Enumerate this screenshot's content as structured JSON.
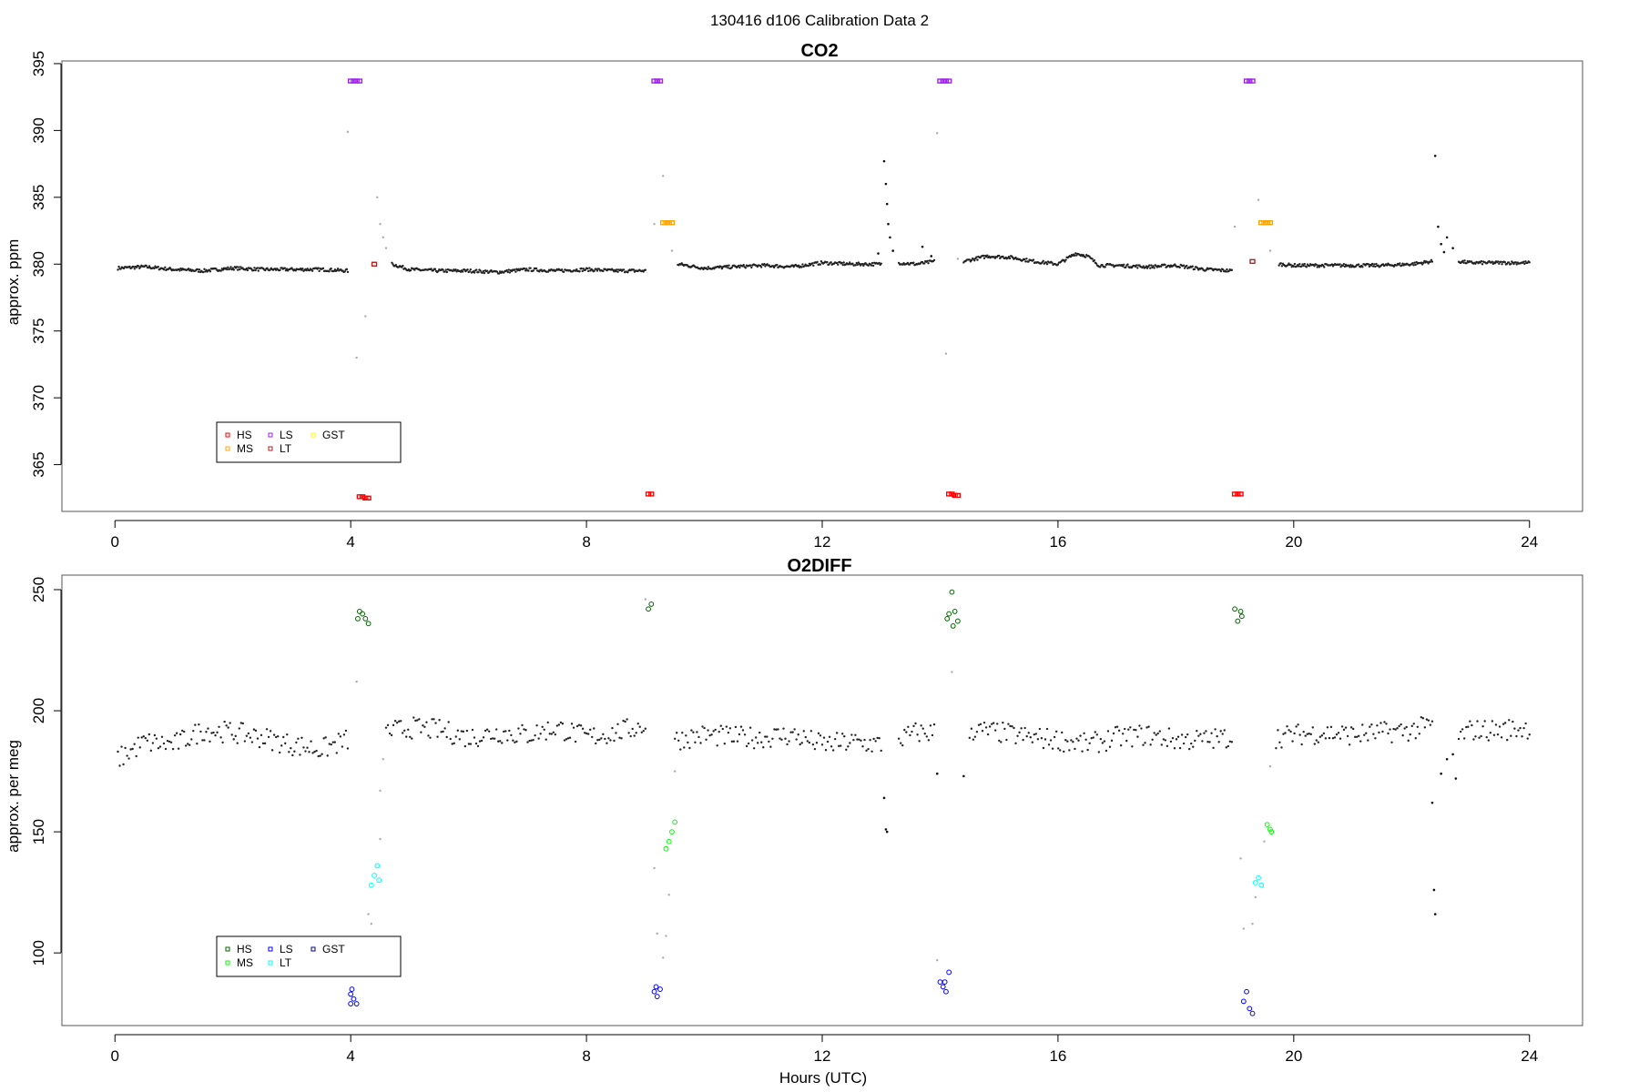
{
  "figure": {
    "title": "130416   d106   Calibration Data 2"
  },
  "chart_data": [
    {
      "type": "scatter",
      "title": "CO2",
      "xlabel": "",
      "ylabel": "approx. ppm",
      "xlim": [
        -0.9,
        24.9
      ],
      "ylim": [
        361.5,
        395.2
      ],
      "xticks": [
        0,
        4,
        8,
        12,
        16,
        20,
        24
      ],
      "yticks": [
        365,
        370,
        375,
        380,
        385,
        390,
        395
      ],
      "grid": false,
      "legend": {
        "placement": "bottom-left",
        "entries": [
          "HS",
          "MS",
          "LS",
          "LT",
          "GST"
        ]
      },
      "baseline_segments": [
        {
          "x": [
            0.05,
            0.5,
            1.0,
            1.5,
            2.0,
            2.5,
            3.0,
            3.5,
            3.95
          ],
          "y": [
            379.7,
            379.8,
            379.6,
            379.5,
            379.7,
            379.6,
            379.6,
            379.6,
            379.5
          ]
        },
        {
          "x": [
            4.7,
            5.0,
            5.5,
            6.0,
            6.5,
            7.0,
            7.5,
            8.0,
            8.5,
            9.0
          ],
          "y": [
            380.0,
            379.6,
            379.5,
            379.5,
            379.4,
            379.6,
            379.5,
            379.6,
            379.5,
            379.5
          ]
        },
        {
          "x": [
            9.55,
            10.0,
            10.5,
            11.0,
            11.5,
            12.0,
            12.5,
            13.0
          ],
          "y": [
            380.0,
            379.7,
            379.8,
            379.9,
            379.8,
            380.1,
            380.0,
            380.0
          ]
        },
        {
          "x": [
            13.3,
            13.6,
            13.9
          ],
          "y": [
            380.1,
            380.0,
            380.2
          ]
        },
        {
          "x": [
            14.4,
            14.8,
            15.2,
            15.6,
            16.0,
            16.3,
            16.5,
            16.7,
            17.0,
            17.5,
            18.0,
            18.5,
            18.95
          ],
          "y": [
            380.2,
            380.6,
            380.5,
            380.2,
            380.0,
            380.8,
            380.6,
            379.9,
            379.9,
            379.8,
            379.9,
            379.6,
            379.5
          ]
        },
        {
          "x": [
            19.75,
            20.0,
            20.5,
            21.0,
            21.5,
            22.0,
            22.35
          ],
          "y": [
            380.0,
            379.9,
            379.9,
            379.9,
            379.9,
            380.0,
            380.2
          ]
        },
        {
          "x": [
            22.8,
            23.0,
            23.5,
            24.0
          ],
          "y": [
            380.2,
            380.1,
            380.1,
            380.1
          ]
        }
      ],
      "spikes": [
        {
          "x": 13.05,
          "y": 387.7
        },
        {
          "x": 13.08,
          "y": 386.0
        },
        {
          "x": 13.1,
          "y": 384.5
        },
        {
          "x": 13.12,
          "y": 383.0
        },
        {
          "x": 13.15,
          "y": 382.0
        },
        {
          "x": 13.2,
          "y": 381.0
        },
        {
          "x": 12.95,
          "y": 380.8
        },
        {
          "x": 13.7,
          "y": 381.3
        },
        {
          "x": 13.85,
          "y": 380.6
        },
        {
          "x": 22.4,
          "y": 388.1
        },
        {
          "x": 22.45,
          "y": 382.8
        },
        {
          "x": 22.5,
          "y": 381.5
        },
        {
          "x": 22.6,
          "y": 382.0
        },
        {
          "x": 22.7,
          "y": 381.2
        },
        {
          "x": 22.55,
          "y": 380.9
        }
      ],
      "transition_points": [
        {
          "x": 3.95,
          "y": 389.9
        },
        {
          "x": 4.1,
          "y": 373.0
        },
        {
          "x": 4.25,
          "y": 376.1
        },
        {
          "x": 4.45,
          "y": 385.0
        },
        {
          "x": 4.5,
          "y": 383.0
        },
        {
          "x": 4.55,
          "y": 382.0
        },
        {
          "x": 4.6,
          "y": 381.2
        },
        {
          "x": 9.15,
          "y": 383.0
        },
        {
          "x": 9.3,
          "y": 386.6
        },
        {
          "x": 9.45,
          "y": 381.0
        },
        {
          "x": 13.95,
          "y": 389.8
        },
        {
          "x": 14.1,
          "y": 373.3
        },
        {
          "x": 14.3,
          "y": 380.4
        },
        {
          "x": 19.0,
          "y": 382.8
        },
        {
          "x": 19.4,
          "y": 384.8
        },
        {
          "x": 19.6,
          "y": 381.0
        }
      ],
      "series": [
        {
          "name": "HS",
          "color": "#ff0000",
          "points": [
            {
              "x": 4.15,
              "y": 362.6
            },
            {
              "x": 4.2,
              "y": 362.6
            },
            {
              "x": 4.25,
              "y": 362.5
            },
            {
              "x": 4.3,
              "y": 362.5
            },
            {
              "x": 9.05,
              "y": 362.8
            },
            {
              "x": 9.1,
              "y": 362.8
            },
            {
              "x": 14.15,
              "y": 362.8
            },
            {
              "x": 14.2,
              "y": 362.8
            },
            {
              "x": 14.25,
              "y": 362.7
            },
            {
              "x": 14.3,
              "y": 362.7
            },
            {
              "x": 19.0,
              "y": 362.8
            },
            {
              "x": 19.05,
              "y": 362.8
            },
            {
              "x": 19.1,
              "y": 362.8
            }
          ]
        },
        {
          "name": "MS",
          "color": "#ffa500",
          "points": [
            {
              "x": 9.3,
              "y": 383.1
            },
            {
              "x": 9.35,
              "y": 383.1
            },
            {
              "x": 9.4,
              "y": 383.1
            },
            {
              "x": 9.45,
              "y": 383.1
            },
            {
              "x": 19.45,
              "y": 383.1
            },
            {
              "x": 19.5,
              "y": 383.1
            },
            {
              "x": 19.55,
              "y": 383.1
            },
            {
              "x": 19.6,
              "y": 383.1
            }
          ]
        },
        {
          "name": "LS",
          "color": "#a020f0",
          "points": [
            {
              "x": 4.0,
              "y": 393.7
            },
            {
              "x": 4.05,
              "y": 393.7
            },
            {
              "x": 4.1,
              "y": 393.7
            },
            {
              "x": 4.15,
              "y": 393.7
            },
            {
              "x": 9.15,
              "y": 393.7
            },
            {
              "x": 9.2,
              "y": 393.7
            },
            {
              "x": 9.25,
              "y": 393.7
            },
            {
              "x": 14.0,
              "y": 393.7
            },
            {
              "x": 14.05,
              "y": 393.7
            },
            {
              "x": 14.1,
              "y": 393.7
            },
            {
              "x": 14.15,
              "y": 393.7
            },
            {
              "x": 19.2,
              "y": 393.7
            },
            {
              "x": 19.25,
              "y": 393.7
            },
            {
              "x": 19.3,
              "y": 393.7
            }
          ]
        },
        {
          "name": "LT",
          "color": "#b22222",
          "points": [
            {
              "x": 4.4,
              "y": 380.0
            },
            {
              "x": 19.3,
              "y": 380.2
            }
          ]
        },
        {
          "name": "GST",
          "color": "#ffff00",
          "points": []
        }
      ]
    },
    {
      "type": "scatter",
      "title": "O2DIFF",
      "xlabel": "Hours (UTC)",
      "ylabel": "approx. per meg",
      "xlim": [
        -0.9,
        24.9
      ],
      "ylim": [
        70,
        256
      ],
      "xticks": [
        0,
        4,
        8,
        12,
        16,
        20,
        24
      ],
      "yticks": [
        100,
        150,
        200,
        250
      ],
      "grid": false,
      "legend": {
        "placement": "bottom-left",
        "entries": [
          "HS",
          "MS",
          "LS",
          "LT",
          "GST"
        ]
      },
      "baseline_segments": [
        {
          "x": [
            0.05,
            0.5,
            1.0,
            1.5,
            2.0,
            2.5,
            3.0,
            3.5,
            3.95
          ],
          "y": [
            180,
            187,
            186,
            192,
            191,
            189,
            186,
            184,
            188
          ]
        },
        {
          "x": [
            4.6,
            5.0,
            5.5,
            6.0,
            6.5,
            7.0,
            7.5,
            8.0,
            8.5,
            9.0
          ],
          "y": [
            191,
            193,
            192,
            189,
            191,
            190,
            193,
            189,
            191,
            194
          ]
        },
        {
          "x": [
            9.5,
            10.0,
            10.5,
            11.0,
            11.5,
            12.0,
            12.5,
            13.0
          ],
          "y": [
            188,
            190,
            189,
            189,
            190,
            186,
            187,
            186
          ]
        },
        {
          "x": [
            13.3,
            13.6,
            13.9
          ],
          "y": [
            188,
            191,
            191
          ]
        },
        {
          "x": [
            14.5,
            15.0,
            15.5,
            16.0,
            16.5,
            17.0,
            17.5,
            18.0,
            18.5,
            18.95
          ],
          "y": [
            192,
            191,
            189,
            188,
            186,
            189,
            190,
            188,
            188,
            189
          ]
        },
        {
          "x": [
            19.7,
            20.0,
            20.5,
            21.0,
            21.5,
            22.0,
            22.35
          ],
          "y": [
            189,
            190,
            191,
            190,
            191,
            192,
            194
          ]
        },
        {
          "x": [
            22.8,
            23.0,
            23.5,
            24.0
          ],
          "y": [
            189,
            192,
            192,
            193
          ]
        }
      ],
      "spikes": [
        {
          "x": 13.05,
          "y": 164
        },
        {
          "x": 13.08,
          "y": 151
        },
        {
          "x": 13.1,
          "y": 150
        },
        {
          "x": 13.95,
          "y": 174
        },
        {
          "x": 14.4,
          "y": 173
        },
        {
          "x": 22.35,
          "y": 162
        },
        {
          "x": 22.38,
          "y": 126
        },
        {
          "x": 22.4,
          "y": 116
        },
        {
          "x": 22.5,
          "y": 174
        },
        {
          "x": 22.6,
          "y": 180
        },
        {
          "x": 22.7,
          "y": 182
        },
        {
          "x": 22.75,
          "y": 172
        }
      ],
      "transition_points": [
        {
          "x": 4.1,
          "y": 212
        },
        {
          "x": 4.3,
          "y": 116
        },
        {
          "x": 4.35,
          "y": 112
        },
        {
          "x": 4.5,
          "y": 147
        },
        {
          "x": 4.5,
          "y": 167
        },
        {
          "x": 4.55,
          "y": 180
        },
        {
          "x": 9.0,
          "y": 246
        },
        {
          "x": 9.15,
          "y": 135
        },
        {
          "x": 9.2,
          "y": 108
        },
        {
          "x": 9.3,
          "y": 98
        },
        {
          "x": 9.35,
          "y": 107
        },
        {
          "x": 9.4,
          "y": 124
        },
        {
          "x": 9.5,
          "y": 175
        },
        {
          "x": 13.95,
          "y": 97
        },
        {
          "x": 14.2,
          "y": 216
        },
        {
          "x": 19.1,
          "y": 139
        },
        {
          "x": 19.15,
          "y": 110
        },
        {
          "x": 19.3,
          "y": 112
        },
        {
          "x": 19.35,
          "y": 123
        },
        {
          "x": 19.5,
          "y": 146
        },
        {
          "x": 19.6,
          "y": 177
        }
      ],
      "series": [
        {
          "name": "HS",
          "color": "#006400",
          "points": [
            {
              "x": 4.15,
              "y": 241
            },
            {
              "x": 4.2,
              "y": 240
            },
            {
              "x": 4.25,
              "y": 238
            },
            {
              "x": 4.3,
              "y": 236
            },
            {
              "x": 4.12,
              "y": 238
            },
            {
              "x": 9.05,
              "y": 242
            },
            {
              "x": 9.1,
              "y": 244
            },
            {
              "x": 14.15,
              "y": 240
            },
            {
              "x": 14.2,
              "y": 249
            },
            {
              "x": 14.25,
              "y": 241
            },
            {
              "x": 14.3,
              "y": 237
            },
            {
              "x": 14.22,
              "y": 235
            },
            {
              "x": 14.12,
              "y": 238
            },
            {
              "x": 19.0,
              "y": 242
            },
            {
              "x": 19.05,
              "y": 237
            },
            {
              "x": 19.1,
              "y": 241
            },
            {
              "x": 19.12,
              "y": 239
            }
          ]
        },
        {
          "name": "MS",
          "color": "#00ff00",
          "points": [
            {
              "x": 9.35,
              "y": 143
            },
            {
              "x": 9.4,
              "y": 146
            },
            {
              "x": 9.45,
              "y": 150
            },
            {
              "x": 9.5,
              "y": 154
            },
            {
              "x": 19.55,
              "y": 153
            },
            {
              "x": 19.6,
              "y": 151
            },
            {
              "x": 19.62,
              "y": 150
            }
          ]
        },
        {
          "name": "LS",
          "color": "#0000ff",
          "points": [
            {
              "x": 4.0,
              "y": 83
            },
            {
              "x": 4.05,
              "y": 81
            },
            {
              "x": 4.1,
              "y": 79
            },
            {
              "x": 4.0,
              "y": 79
            },
            {
              "x": 4.02,
              "y": 85
            },
            {
              "x": 9.15,
              "y": 84
            },
            {
              "x": 9.2,
              "y": 82
            },
            {
              "x": 9.25,
              "y": 85
            },
            {
              "x": 9.18,
              "y": 86
            },
            {
              "x": 14.0,
              "y": 88
            },
            {
              "x": 14.05,
              "y": 86
            },
            {
              "x": 14.1,
              "y": 84
            },
            {
              "x": 14.15,
              "y": 92
            },
            {
              "x": 14.08,
              "y": 88
            },
            {
              "x": 19.15,
              "y": 80
            },
            {
              "x": 19.2,
              "y": 84
            },
            {
              "x": 19.25,
              "y": 77
            },
            {
              "x": 19.3,
              "y": 75
            }
          ]
        },
        {
          "name": "LT",
          "color": "#00ffff",
          "points": [
            {
              "x": 4.35,
              "y": 128
            },
            {
              "x": 4.4,
              "y": 132
            },
            {
              "x": 4.45,
              "y": 136
            },
            {
              "x": 4.48,
              "y": 130
            },
            {
              "x": 19.35,
              "y": 129
            },
            {
              "x": 19.4,
              "y": 131
            },
            {
              "x": 19.45,
              "y": 128
            }
          ]
        },
        {
          "name": "GST",
          "color": "#00008b",
          "points": []
        }
      ]
    }
  ]
}
